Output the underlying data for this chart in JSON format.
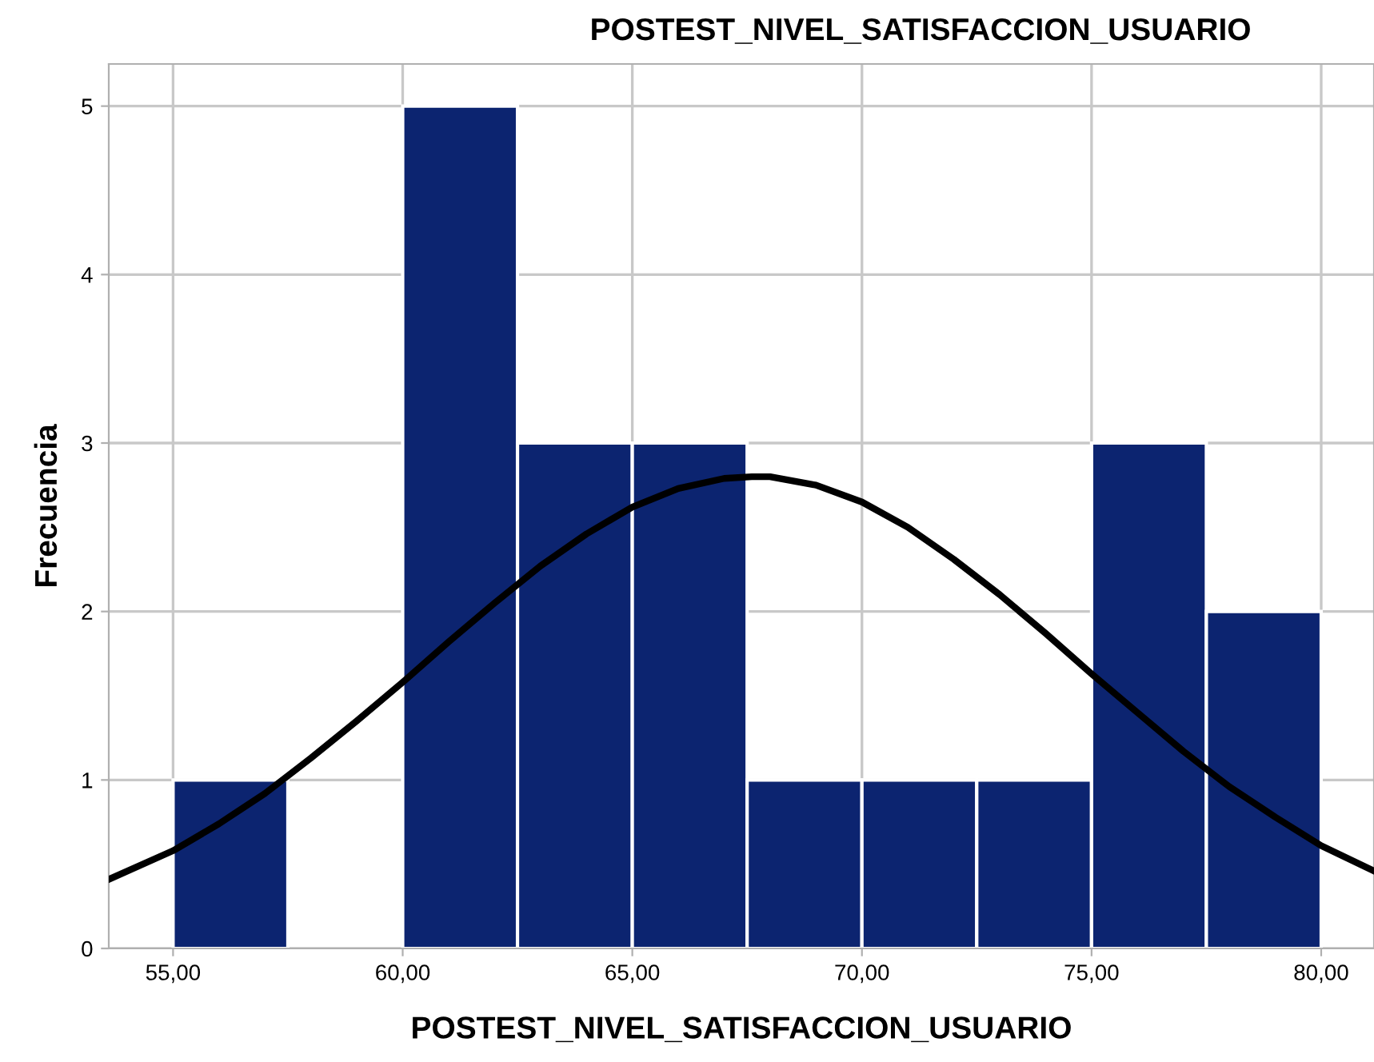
{
  "chart_data": {
    "type": "histogram",
    "title": "POSTEST_NIVEL_SATISFACCION_USUARIO",
    "xlabel": "POSTEST_NIVEL_SATISFACCION_USUARIO",
    "ylabel": "Frecuencia",
    "bins": [
      55,
      57.5,
      60,
      62.5,
      65,
      67.5,
      70,
      72.5,
      75,
      77.5,
      80
    ],
    "values": [
      1,
      0,
      5,
      3,
      3,
      1,
      1,
      1,
      3,
      2
    ],
    "color": "#0c2470",
    "series": [
      {
        "type": "line",
        "color": "#000000",
        "x": [
          53.6,
          55,
          56,
          57,
          58,
          59,
          60,
          61,
          62,
          63,
          64,
          65,
          66,
          67,
          67.6,
          68,
          69,
          70,
          71,
          72,
          73,
          74,
          75,
          76,
          77,
          78,
          79,
          80,
          81.15
        ],
        "values": [
          0.41,
          0.58,
          0.74,
          0.92,
          1.13,
          1.35,
          1.58,
          1.82,
          2.05,
          2.27,
          2.46,
          2.62,
          2.73,
          2.79,
          2.8,
          2.8,
          2.75,
          2.65,
          2.5,
          2.31,
          2.1,
          1.87,
          1.63,
          1.4,
          1.17,
          0.96,
          0.78,
          0.61,
          0.46
        ]
      }
    ],
    "xlim": [
      53.6,
      81.15
    ],
    "ylim": [
      0,
      5.25
    ],
    "xticks": [
      {
        "value": 55,
        "label": "55,00"
      },
      {
        "value": 60,
        "label": "60,00"
      },
      {
        "value": 65,
        "label": "65,00"
      },
      {
        "value": 70,
        "label": "70,00"
      },
      {
        "value": 75,
        "label": "75,00"
      },
      {
        "value": 80,
        "label": "80,00"
      }
    ],
    "yticks": [
      0,
      1,
      2,
      3,
      4,
      5
    ],
    "grid": true
  }
}
